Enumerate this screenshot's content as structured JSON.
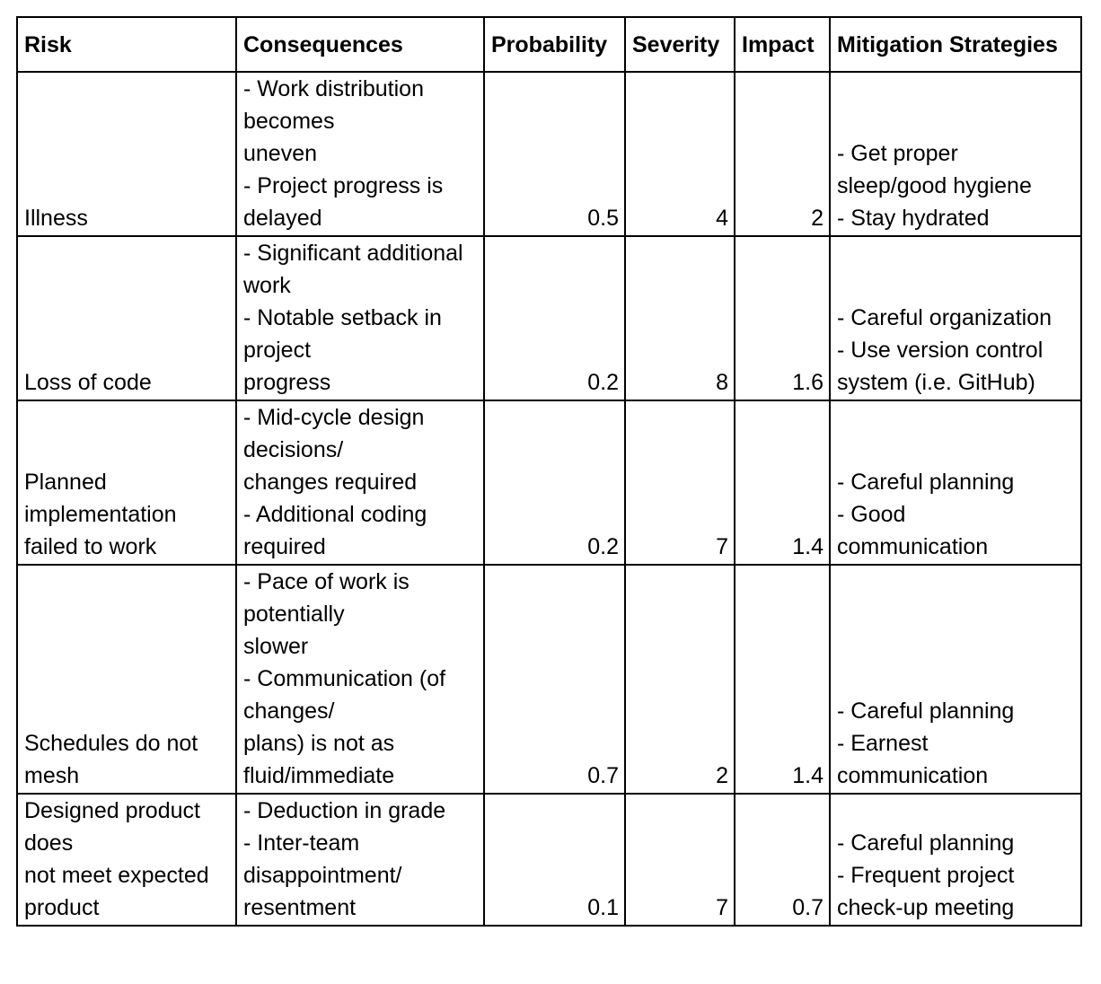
{
  "headers": {
    "risk": "Risk",
    "consequences": "Consequences",
    "probability": "Probability",
    "severity": "Severity",
    "impact": "Impact",
    "mitigation": "Mitigation Strategies"
  },
  "rows": [
    {
      "risk": [
        "Illness"
      ],
      "consequences": [
        "- Work distribution",
        "becomes",
        "uneven",
        "- Project progress is",
        "delayed"
      ],
      "probability": "0.5",
      "severity": "4",
      "impact": "2",
      "mitigation": [
        "- Get proper",
        "sleep/good hygiene",
        "- Stay hydrated"
      ]
    },
    {
      "risk": [
        "Loss of code"
      ],
      "consequences": [
        "- Significant additional",
        "work",
        "- Notable setback in",
        "project",
        "progress"
      ],
      "probability": "0.2",
      "severity": "8",
      "impact": "1.6",
      "mitigation": [
        "- Careful organization",
        "- Use version control",
        "system (i.e. GitHub)"
      ]
    },
    {
      "risk": [
        "Planned",
        "implementation",
        "failed to work"
      ],
      "consequences": [
        "- Mid-cycle design",
        "decisions/",
        "changes required",
        "- Additional coding",
        "required"
      ],
      "probability": "0.2",
      "severity": "7",
      "impact": "1.4",
      "mitigation": [
        "- Careful planning",
        "- Good",
        "communication"
      ]
    },
    {
      "risk": [
        "Schedules do not",
        "mesh"
      ],
      "consequences": [
        "- Pace of work is",
        "potentially",
        "slower",
        "- Communication (of",
        "changes/",
        "plans) is not as",
        "fluid/immediate"
      ],
      "probability": "0.7",
      "severity": "2",
      "impact": "1.4",
      "mitigation": [
        "- Careful planning",
        "- Earnest",
        "communication"
      ]
    },
    {
      "risk": [
        "Designed product",
        "does",
        "not meet expected",
        "product"
      ],
      "consequences": [
        "- Deduction in grade",
        "- Inter-team",
        "disappointment/",
        "resentment"
      ],
      "probability": "0.1",
      "severity": "7",
      "impact": "0.7",
      "mitigation": [
        "- Careful planning",
        "- Frequent project",
        "check-up meeting"
      ]
    }
  ]
}
